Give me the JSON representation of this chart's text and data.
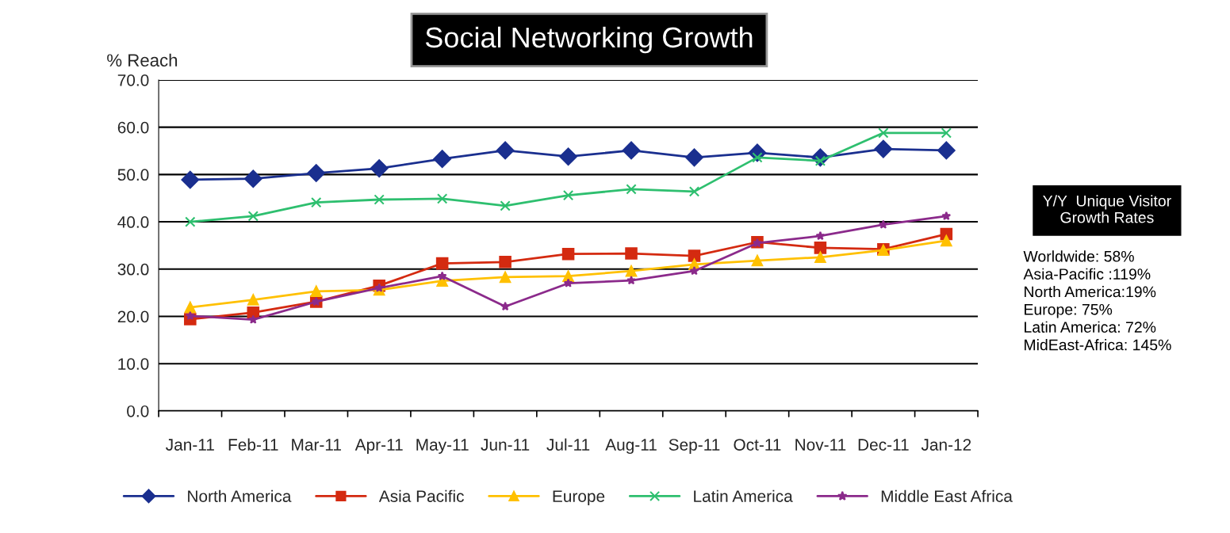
{
  "chart_data": {
    "type": "line",
    "title": "Social Networking Growth",
    "ylabel": "% Reach",
    "categories": [
      "Jan-11",
      "Feb-11",
      "Mar-11",
      "Apr-11",
      "May-11",
      "Jun-11",
      "Jul-11",
      "Aug-11",
      "Sep-11",
      "Oct-11",
      "Nov-11",
      "Dec-11",
      "Jan-12"
    ],
    "series": [
      {
        "name": "North America",
        "color": "#1a2f8f",
        "marker": "diamond",
        "values": [
          48.9,
          49.1,
          50.3,
          51.3,
          53.3,
          55.1,
          53.8,
          55.1,
          53.6,
          54.6,
          53.6,
          55.4,
          55.1
        ]
      },
      {
        "name": "Asia Pacific",
        "color": "#d42a10",
        "marker": "square",
        "values": [
          19.4,
          20.8,
          23.1,
          26.5,
          31.2,
          31.5,
          33.2,
          33.3,
          32.8,
          35.7,
          34.5,
          34.2,
          37.4
        ]
      },
      {
        "name": "Europe",
        "color": "#ffc000",
        "marker": "triangle",
        "values": [
          21.9,
          23.5,
          25.3,
          25.6,
          27.5,
          28.3,
          28.5,
          29.6,
          31.0,
          31.8,
          32.5,
          34.0,
          36.0
        ]
      },
      {
        "name": "Latin America",
        "color": "#2ebf6f",
        "marker": "cross",
        "values": [
          40.0,
          41.2,
          44.1,
          44.7,
          44.9,
          43.4,
          45.6,
          46.9,
          46.4,
          53.6,
          52.9,
          58.8,
          58.8
        ]
      },
      {
        "name": "Middle East Africa",
        "color": "#8b2a8b",
        "marker": "star",
        "values": [
          20.1,
          19.3,
          23.1,
          26.0,
          28.5,
          22.1,
          27.0,
          27.6,
          29.6,
          35.5,
          37.0,
          39.4,
          41.2
        ]
      }
    ],
    "ylim": [
      0,
      70
    ],
    "yticks": [
      {
        "value": 0,
        "label": "0.0"
      },
      {
        "value": 10,
        "label": "10.0"
      },
      {
        "value": 20,
        "label": "20.0"
      },
      {
        "value": 30,
        "label": "30.0"
      },
      {
        "value": 40,
        "label": "40.0"
      },
      {
        "value": 50,
        "label": "50.0"
      },
      {
        "value": 60,
        "label": "60.0"
      },
      {
        "value": 70,
        "label": "70.0"
      }
    ],
    "grid": "y",
    "legend": "bottom",
    "line_style": "solid",
    "annotations": [
      "Y/Y  Unique Visitor\nGrowth Rates",
      "Worldwide: 58%\nAsia-Pacific :119%\nNorth America:19%\nEurope: 75%\nLatin America: 72%\nMidEast-Africa: 145%"
    ]
  }
}
